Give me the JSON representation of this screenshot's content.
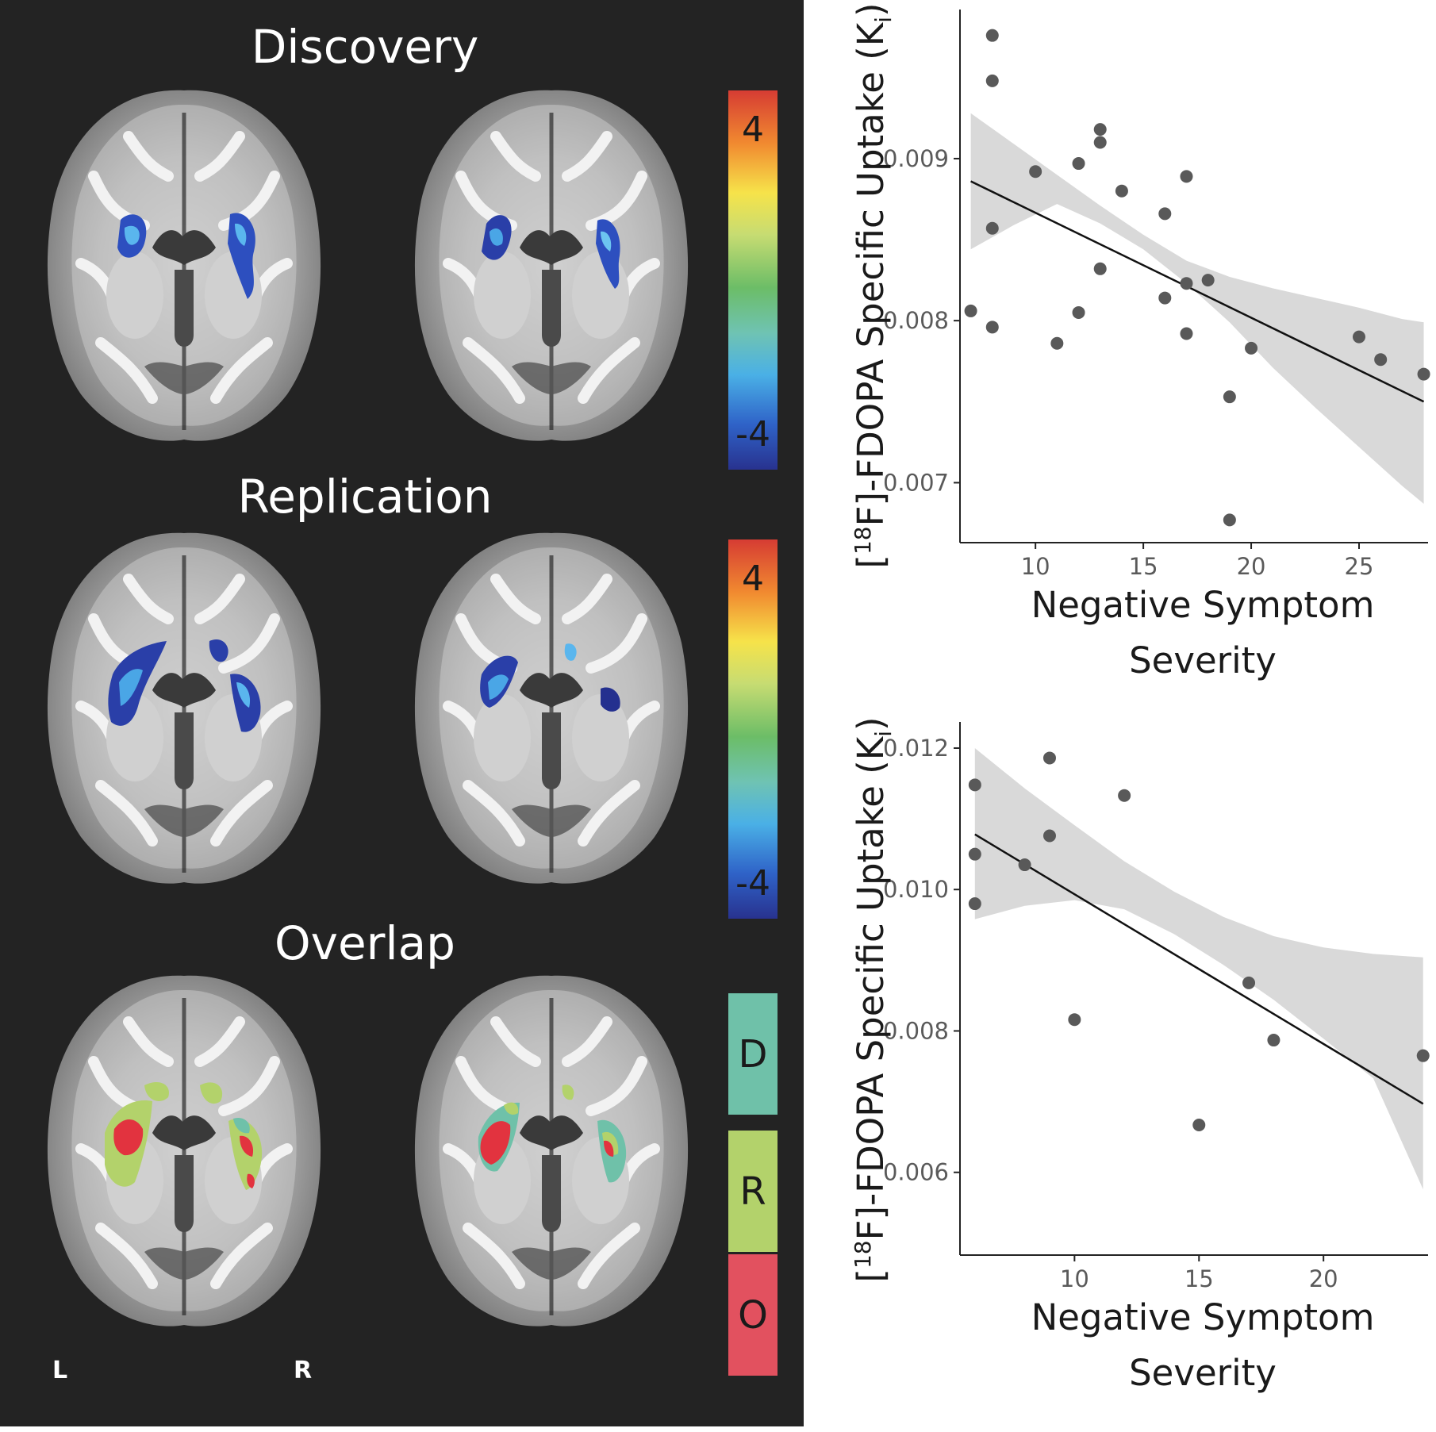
{
  "left": {
    "sections": [
      {
        "title": "Discovery",
        "colorbar": {
          "top": "4",
          "bottom": "-4"
        }
      },
      {
        "title": "Replication",
        "colorbar": {
          "top": "4",
          "bottom": "-4"
        }
      },
      {
        "title": "Overlap",
        "keys": [
          {
            "letter": "D",
            "color": "#6fc1a9"
          },
          {
            "letter": "R",
            "color": "#b3d26b"
          },
          {
            "letter": "O",
            "color": "#e2515f"
          }
        ]
      }
    ],
    "orientation": {
      "left": "L",
      "right": "R"
    }
  },
  "chart_data": [
    {
      "type": "scatter",
      "xlabel": [
        "Negative Symptom",
        "Severity"
      ],
      "ylabel": "[18F]-FDOPA Specific Uptake (Ki)",
      "x_ticks": [
        10,
        15,
        20,
        25
      ],
      "y_ticks": [
        "0.007",
        "0.008",
        "0.009"
      ],
      "xlim": [
        6.5,
        28.2
      ],
      "ylim": [
        0.00663,
        0.00992
      ],
      "points": [
        [
          7,
          0.00806
        ],
        [
          8,
          0.00976
        ],
        [
          8,
          0.00948
        ],
        [
          8,
          0.00857
        ],
        [
          8,
          0.00796
        ],
        [
          10,
          0.00892
        ],
        [
          11,
          0.00786
        ],
        [
          12,
          0.00897
        ],
        [
          12,
          0.00805
        ],
        [
          13,
          0.00918
        ],
        [
          13,
          0.0091
        ],
        [
          13,
          0.00832
        ],
        [
          14,
          0.0088
        ],
        [
          16,
          0.00866
        ],
        [
          16,
          0.00814
        ],
        [
          17,
          0.00889
        ],
        [
          17,
          0.00823
        ],
        [
          17,
          0.00792
        ],
        [
          18,
          0.00825
        ],
        [
          19,
          0.00753
        ],
        [
          19,
          0.00677
        ],
        [
          20,
          0.00783
        ],
        [
          25,
          0.0079
        ],
        [
          26,
          0.00776
        ],
        [
          28,
          0.00767
        ]
      ],
      "fit": {
        "x": [
          7,
          28
        ],
        "y": [
          0.00886,
          0.0075
        ]
      },
      "band": {
        "x": [
          7,
          9,
          11,
          13,
          15,
          17,
          19,
          21,
          23,
          25,
          27,
          28
        ],
        "upper": [
          0.00928,
          0.00909,
          0.0089,
          0.00871,
          0.00853,
          0.00837,
          0.00827,
          0.0082,
          0.00814,
          0.00808,
          0.00801,
          0.00799
        ],
        "lower": [
          0.00844,
          0.00859,
          0.00872,
          0.0086,
          0.00844,
          0.00823,
          0.00799,
          0.00771,
          0.00746,
          0.00722,
          0.00698,
          0.00687
        ]
      }
    },
    {
      "type": "scatter",
      "xlabel": [
        "Negative Symptom",
        "Severity"
      ],
      "ylabel": "[18F]-FDOPA Specific Uptake (Ki)",
      "x_ticks": [
        10,
        15,
        20
      ],
      "y_ticks": [
        "0.006",
        "0.008",
        "0.010",
        "0.012"
      ],
      "xlim": [
        5.4,
        24.2
      ],
      "ylim": [
        0.00483,
        0.01237
      ],
      "points": [
        [
          6,
          0.01148
        ],
        [
          6,
          0.0105
        ],
        [
          6,
          0.0098
        ],
        [
          8,
          0.01035
        ],
        [
          9,
          0.01186
        ],
        [
          9,
          0.01076
        ],
        [
          10,
          0.00816
        ],
        [
          12,
          0.01133
        ],
        [
          15,
          0.00667
        ],
        [
          17,
          0.00868
        ],
        [
          18,
          0.00787
        ],
        [
          24,
          0.00765
        ]
      ],
      "fit": {
        "x": [
          6,
          24
        ],
        "y": [
          0.01078,
          0.00697
        ]
      },
      "band": {
        "x": [
          6,
          8,
          10,
          12,
          14,
          16,
          18,
          20,
          22,
          24
        ],
        "upper": [
          0.012,
          0.01143,
          0.01091,
          0.0104,
          0.00997,
          0.00961,
          0.00934,
          0.00918,
          0.00909,
          0.00904
        ],
        "lower": [
          0.00958,
          0.00977,
          0.00985,
          0.00972,
          0.00937,
          0.00893,
          0.00844,
          0.00789,
          0.00733,
          0.00576
        ]
      }
    }
  ]
}
